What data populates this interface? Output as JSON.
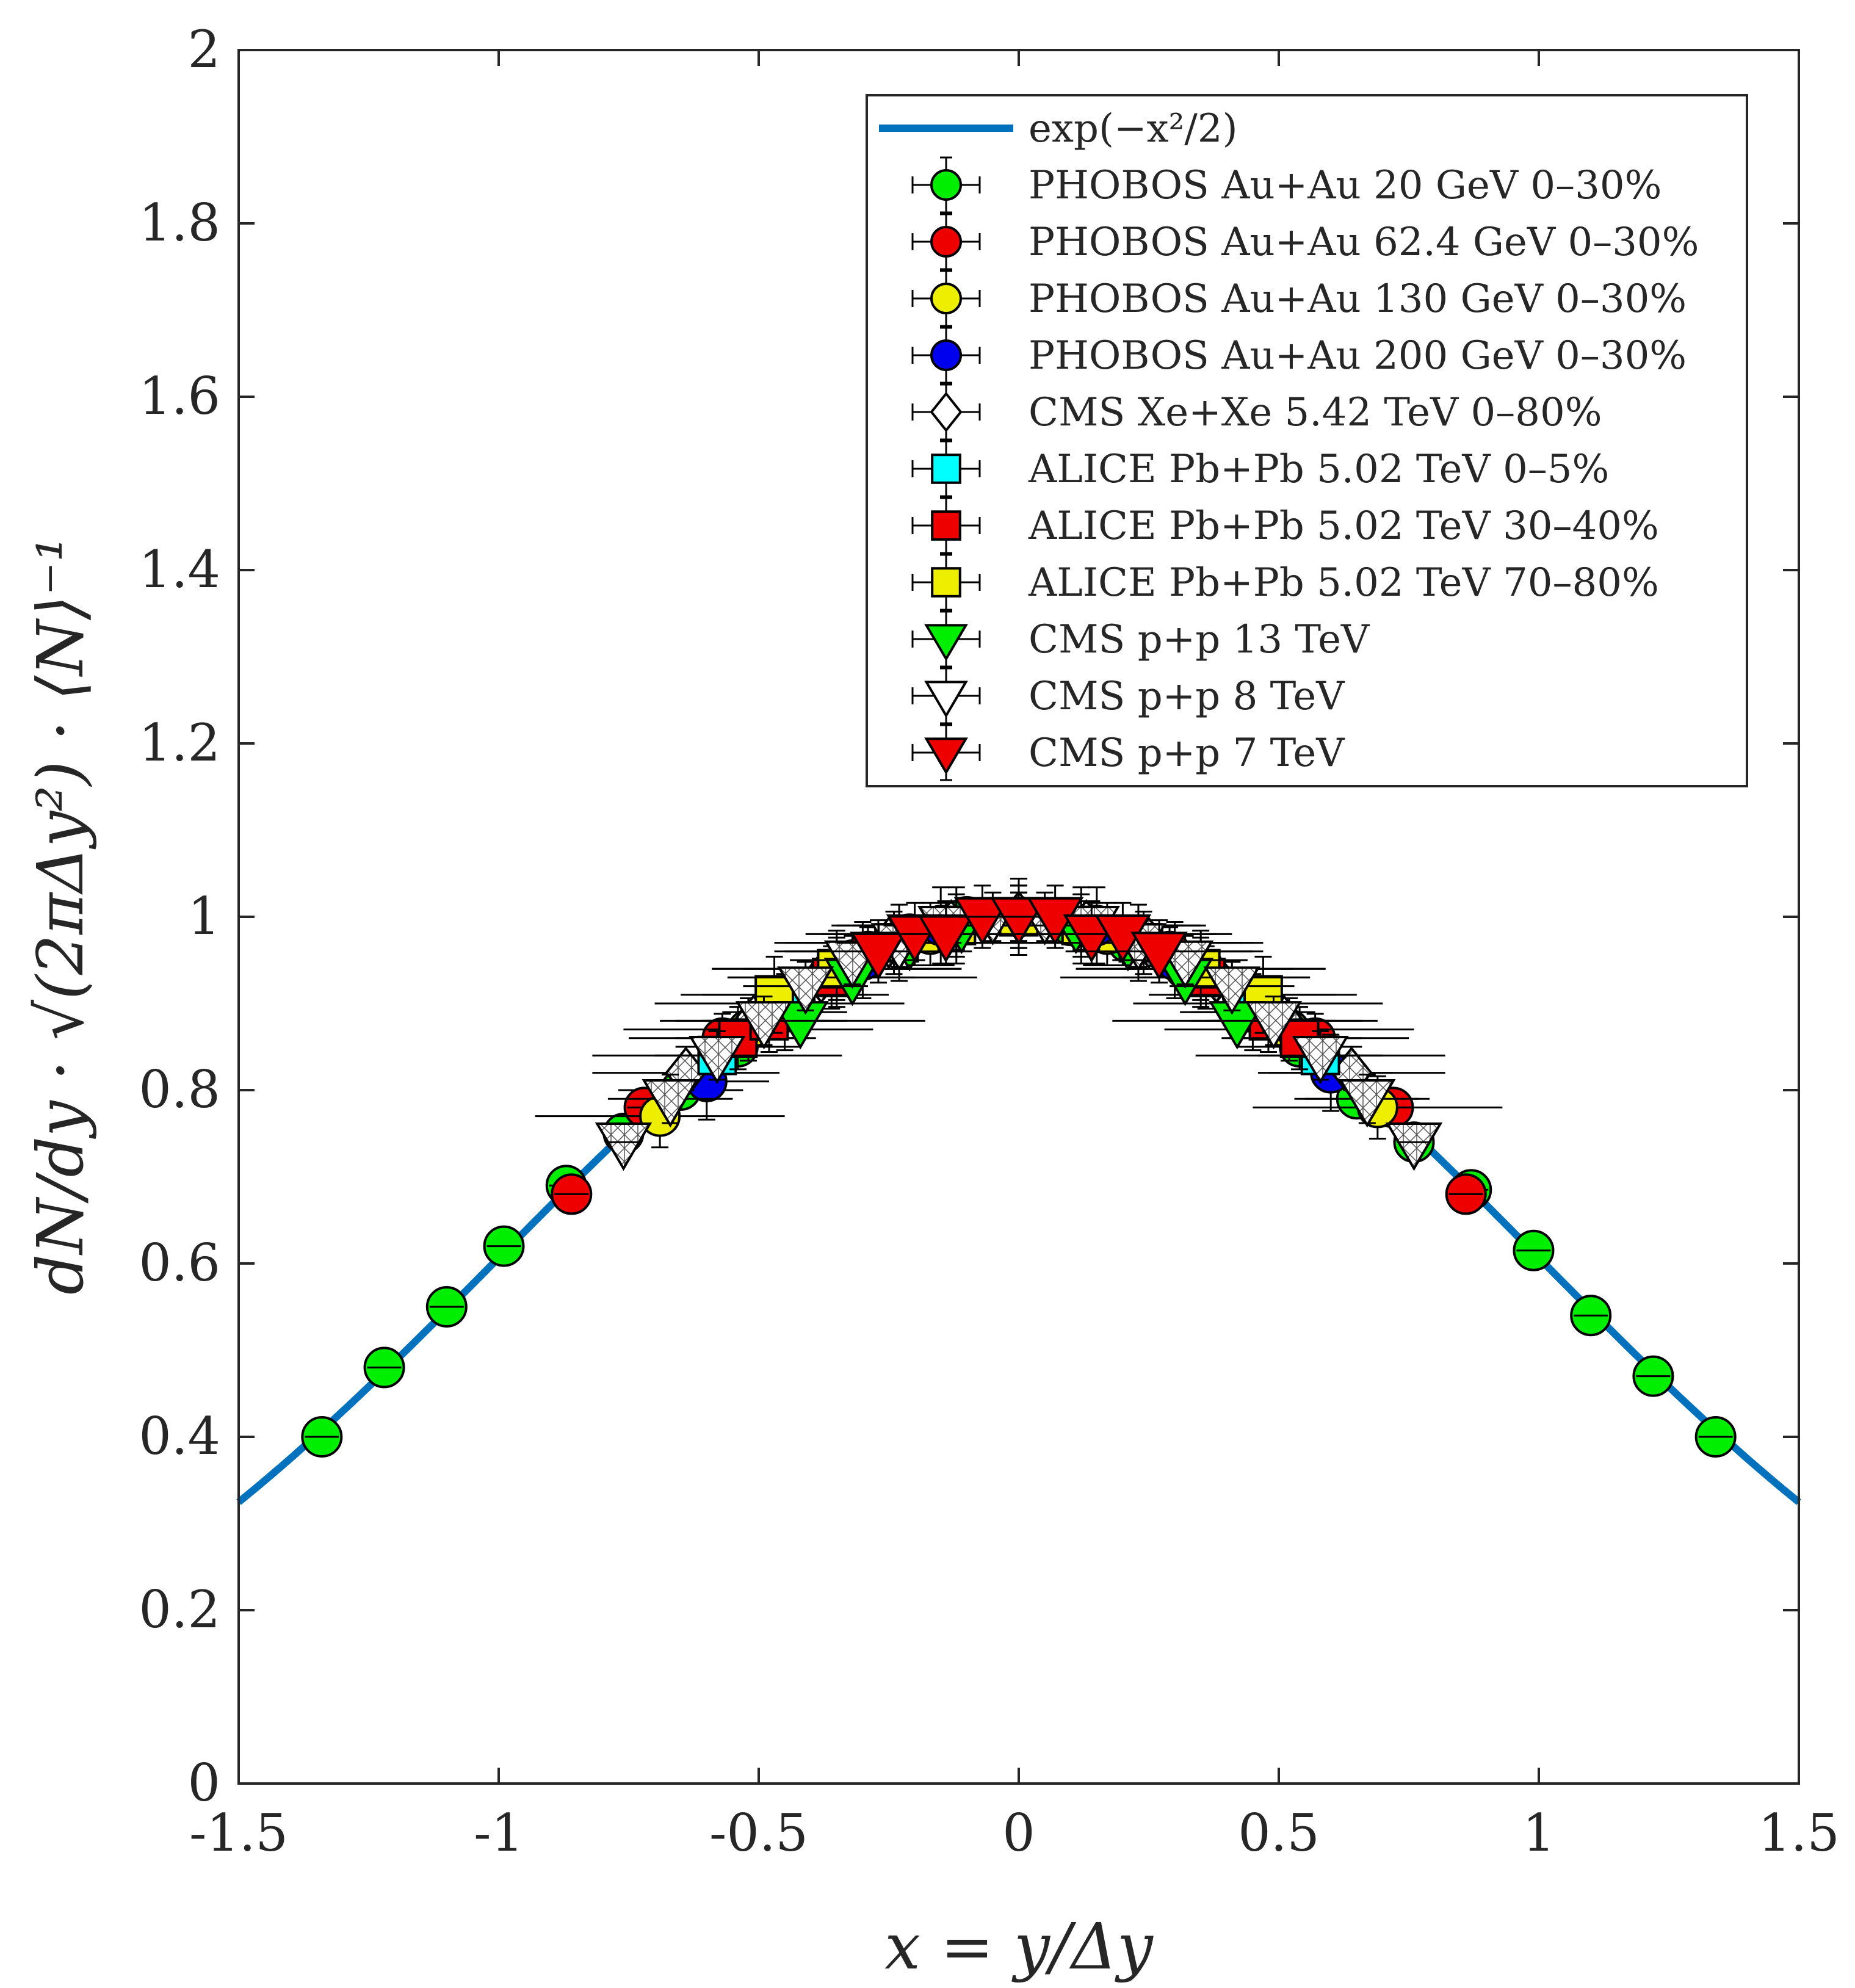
{
  "chart_data": {
    "type": "scatter",
    "xlabel": "x = y/Δy",
    "ylabel": "dN/dy · √(2πΔy²) · ⟨N⟩⁻¹",
    "xlim": [
      -1.5,
      1.5
    ],
    "ylim": [
      0,
      2
    ],
    "xticks": [
      "-1.5",
      "-1",
      "-0.5",
      "0",
      "0.5",
      "1",
      "1.5"
    ],
    "yticks": [
      "0",
      "0.2",
      "0.4",
      "0.6",
      "0.8",
      "1",
      "1.2",
      "1.4",
      "1.6",
      "1.8",
      "2"
    ],
    "grid": false,
    "legend_position": "top-right",
    "curve": {
      "name": "exp(−x²/2)",
      "color": "#0072bd"
    },
    "series": [
      {
        "name": "PHOBOS Au+Au 20 GeV 0–30%",
        "marker": "circle",
        "color": "#00ee00",
        "x": [
          -1.34,
          -1.22,
          -1.1,
          -0.99,
          -0.87,
          -0.76,
          -0.65,
          -0.54,
          -0.43,
          -0.32,
          -0.21,
          -0.1,
          0.0,
          0.1,
          0.21,
          0.32,
          0.43,
          0.54,
          0.65,
          0.76,
          0.87,
          0.99,
          1.1,
          1.22,
          1.34
        ],
        "y": [
          0.4,
          0.48,
          0.55,
          0.62,
          0.69,
          0.75,
          0.8,
          0.85,
          0.9,
          0.95,
          0.98,
          1.0,
          1.0,
          0.99,
          0.97,
          0.94,
          0.89,
          0.85,
          0.79,
          0.74,
          0.685,
          0.615,
          0.54,
          0.47,
          0.4
        ]
      },
      {
        "name": "PHOBOS Au+Au 62.4 GeV 0–30%",
        "marker": "circle",
        "color": "#ee0000",
        "x": [
          -0.86,
          -0.72,
          -0.57,
          -0.43,
          -0.29,
          -0.14,
          0.0,
          0.14,
          0.29,
          0.43,
          0.57,
          0.72,
          0.86
        ],
        "y": [
          0.68,
          0.78,
          0.86,
          0.91,
          0.96,
          0.99,
          1.0,
          0.99,
          0.96,
          0.91,
          0.86,
          0.78,
          0.68
        ]
      },
      {
        "name": "PHOBOS Au+Au 130 GeV 0–30%",
        "marker": "circle",
        "color": "#eeee00",
        "x": [
          -0.69,
          -0.52,
          -0.35,
          -0.17,
          0.0,
          0.17,
          0.35,
          0.52,
          0.69
        ],
        "y": [
          0.77,
          0.87,
          0.94,
          0.98,
          1.0,
          0.98,
          0.94,
          0.87,
          0.78
        ]
      },
      {
        "name": "PHOBOS Au+Au 200 GeV 0–30%",
        "marker": "circle",
        "color": "#0000ee",
        "x": [
          -0.6,
          -0.45,
          -0.3,
          -0.15,
          0.0,
          0.15,
          0.3,
          0.45,
          0.6
        ],
        "y": [
          0.81,
          0.89,
          0.95,
          0.99,
          1.0,
          0.99,
          0.95,
          0.89,
          0.82
        ]
      },
      {
        "name": "CMS Xe+Xe 5.42 TeV 0–80%",
        "marker": "diamond",
        "color": "#ffffff",
        "x": [
          -0.64,
          -0.51,
          -0.38,
          -0.25,
          -0.13,
          0.0,
          0.13,
          0.25,
          0.38,
          0.51,
          0.64
        ],
        "y": [
          0.82,
          0.88,
          0.93,
          0.97,
          0.99,
          1.0,
          0.99,
          0.97,
          0.93,
          0.88,
          0.82
        ]
      },
      {
        "name": "ALICE Pb+Pb 5.02 TeV 0–5%",
        "marker": "square",
        "color": "#00ffff",
        "x": [
          -0.58,
          -0.46,
          -0.35,
          -0.23,
          -0.12,
          0.0,
          0.12,
          0.23,
          0.35,
          0.46,
          0.58
        ],
        "y": [
          0.84,
          0.9,
          0.94,
          0.97,
          0.99,
          1.0,
          0.99,
          0.97,
          0.94,
          0.9,
          0.84
        ]
      },
      {
        "name": "ALICE Pb+Pb 5.02 TeV 30–40%",
        "marker": "square",
        "color": "#ee0000",
        "x": [
          -0.54,
          -0.48,
          -0.36,
          -0.24,
          -0.12,
          0.0,
          0.12,
          0.24,
          0.36,
          0.48,
          0.54
        ],
        "y": [
          0.86,
          0.88,
          0.93,
          0.97,
          0.99,
          1.0,
          0.99,
          0.97,
          0.93,
          0.88,
          0.86
        ]
      },
      {
        "name": "ALICE Pb+Pb 5.02 TeV 70–80%",
        "marker": "square",
        "color": "#eeee00",
        "x": [
          -0.47,
          -0.35,
          -0.23,
          -0.12,
          0.0,
          0.12,
          0.23,
          0.35,
          0.47
        ],
        "y": [
          0.91,
          0.94,
          0.97,
          0.99,
          1.0,
          0.99,
          0.97,
          0.94,
          0.91
        ]
      },
      {
        "name": "CMS p+p 13 TeV",
        "marker": "triangle-down",
        "color": "#00ee00",
        "x": [
          -0.42,
          -0.32,
          -0.21,
          -0.11,
          0.0,
          0.11,
          0.21,
          0.32,
          0.42
        ],
        "y": [
          0.88,
          0.93,
          0.97,
          0.99,
          1.0,
          0.99,
          0.97,
          0.93,
          0.88
        ]
      },
      {
        "name": "CMS p+p 8 TeV",
        "marker": "triangle-down",
        "color": "#ffffff",
        "x": [
          -0.76,
          -0.67,
          -0.58,
          -0.49,
          -0.41,
          -0.32,
          -0.23,
          -0.14,
          -0.05,
          0.05,
          0.14,
          0.23,
          0.32,
          0.41,
          0.49,
          0.58,
          0.67,
          0.76
        ],
        "y": [
          0.74,
          0.79,
          0.84,
          0.88,
          0.92,
          0.95,
          0.97,
          0.99,
          1.0,
          1.0,
          0.99,
          0.97,
          0.95,
          0.92,
          0.88,
          0.84,
          0.79,
          0.74
        ]
      },
      {
        "name": "CMS p+p 7 TeV",
        "marker": "triangle-down",
        "color": "#ee0000",
        "x": [
          -0.27,
          -0.2,
          -0.14,
          -0.07,
          0.0,
          0.07,
          0.14,
          0.2,
          0.27
        ],
        "y": [
          0.96,
          0.98,
          0.98,
          1.0,
          1.0,
          1.0,
          0.98,
          0.98,
          0.96
        ]
      }
    ]
  }
}
